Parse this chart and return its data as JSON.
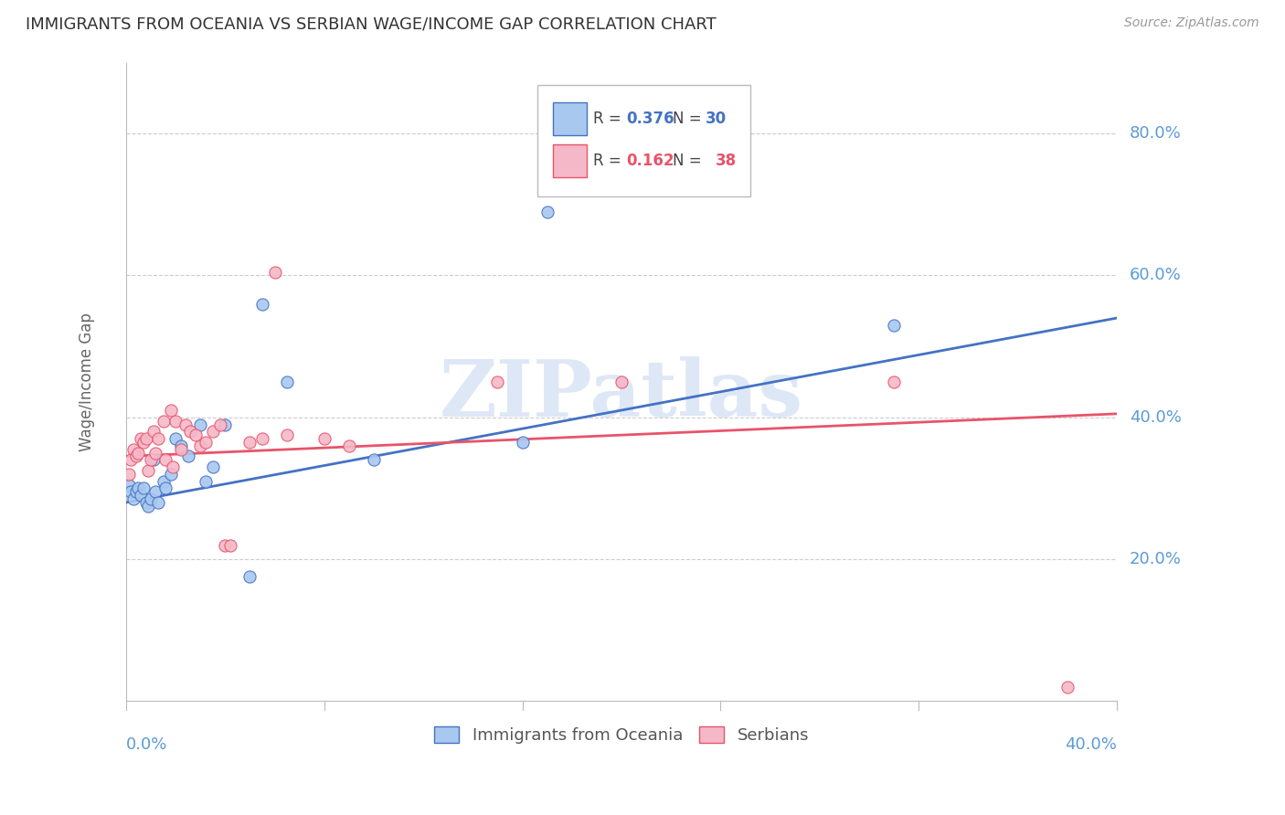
{
  "title": "IMMIGRANTS FROM OCEANIA VS SERBIAN WAGE/INCOME GAP CORRELATION CHART",
  "source": "Source: ZipAtlas.com",
  "ylabel": "Wage/Income Gap",
  "xlim": [
    0.0,
    0.4
  ],
  "ylim": [
    0.0,
    0.9
  ],
  "yticks": [
    0.2,
    0.4,
    0.6,
    0.8
  ],
  "ytick_labels": [
    "20.0%",
    "40.0%",
    "60.0%",
    "80.0%"
  ],
  "xtick_left_label": "0.0%",
  "xtick_right_label": "40.0%",
  "series1_color": "#A8C8F0",
  "series2_color": "#F5B8C8",
  "line1_color": "#4472C4",
  "line2_color": "#E8546A",
  "series1_label": "Immigrants from Oceania",
  "series2_label": "Serbians",
  "R1": "0.376",
  "N1": "30",
  "R2": "0.162",
  "N2": "38",
  "watermark": "ZIPatlas",
  "watermark_color": "#C8D8F0",
  "axis_color": "#5B9BD5",
  "grid_color": "#CCCCCC",
  "background_color": "#FFFFFF",
  "scatter1_x": [
    0.001,
    0.002,
    0.003,
    0.004,
    0.005,
    0.006,
    0.007,
    0.008,
    0.009,
    0.01,
    0.011,
    0.012,
    0.013,
    0.015,
    0.016,
    0.018,
    0.02,
    0.022,
    0.025,
    0.03,
    0.032,
    0.035,
    0.04,
    0.05,
    0.055,
    0.065,
    0.1,
    0.16,
    0.17,
    0.31
  ],
  "scatter1_y": [
    0.305,
    0.295,
    0.285,
    0.295,
    0.3,
    0.29,
    0.3,
    0.28,
    0.275,
    0.285,
    0.34,
    0.295,
    0.28,
    0.31,
    0.3,
    0.32,
    0.37,
    0.36,
    0.345,
    0.39,
    0.31,
    0.33,
    0.39,
    0.175,
    0.56,
    0.45,
    0.34,
    0.365,
    0.69,
    0.53
  ],
  "scatter2_x": [
    0.001,
    0.002,
    0.003,
    0.004,
    0.005,
    0.006,
    0.007,
    0.008,
    0.009,
    0.01,
    0.011,
    0.012,
    0.013,
    0.015,
    0.016,
    0.018,
    0.019,
    0.02,
    0.022,
    0.024,
    0.026,
    0.028,
    0.03,
    0.032,
    0.035,
    0.038,
    0.04,
    0.042,
    0.05,
    0.055,
    0.06,
    0.065,
    0.08,
    0.09,
    0.15,
    0.2,
    0.31,
    0.38
  ],
  "scatter2_y": [
    0.32,
    0.34,
    0.355,
    0.345,
    0.35,
    0.37,
    0.365,
    0.37,
    0.325,
    0.34,
    0.38,
    0.35,
    0.37,
    0.395,
    0.34,
    0.41,
    0.33,
    0.395,
    0.355,
    0.39,
    0.38,
    0.375,
    0.36,
    0.365,
    0.38,
    0.39,
    0.22,
    0.22,
    0.365,
    0.37,
    0.605,
    0.375,
    0.37,
    0.36,
    0.45,
    0.45,
    0.45,
    0.02
  ],
  "trend1_x": [
    0.0,
    0.4
  ],
  "trend1_y": [
    0.28,
    0.54
  ],
  "trend2_x": [
    0.0,
    0.4
  ],
  "trend2_y": [
    0.345,
    0.405
  ]
}
